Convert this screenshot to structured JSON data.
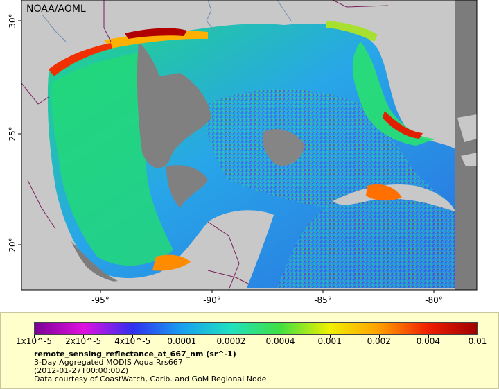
{
  "map": {
    "credit": "NOAA/AOML",
    "lat_ticks": [
      "30°",
      "25°",
      "20°"
    ],
    "lon_ticks": [
      "-95°",
      "-90°",
      "-85°",
      "-80°"
    ],
    "colors": {
      "land": "#c8c8c8",
      "no_data": "#808080",
      "ocean_low": "#2f6fe8",
      "ocean_mid": "#19d27c",
      "ocean_high": "#f6d420",
      "coastal_high": "#c00000",
      "borders": "#7a1f5a",
      "rivers": "#6f8fb4"
    }
  },
  "legend": {
    "tick_labels": [
      "1x10^-5",
      "2x10^-5",
      "4x10^-5",
      "0.0001",
      "0.0002",
      "0.0004",
      "0.001",
      "0.002",
      "0.004",
      "0.01"
    ],
    "variable": "remote_sensing_reflectance_at_667_nm (sr^-1)",
    "product": "3-Day Aggregated MODIS Aqua Rrs667",
    "time": "(2012-01-27T00:00:00Z)",
    "credit": "Data courtesy of CoastWatch, Carib. and GoM Regional Node",
    "colormap": [
      "#7a0096",
      "#e010e0",
      "#3030f0",
      "#18a0f0",
      "#20e0c0",
      "#40e040",
      "#f0f000",
      "#ffa000",
      "#f02000",
      "#a00000"
    ]
  }
}
